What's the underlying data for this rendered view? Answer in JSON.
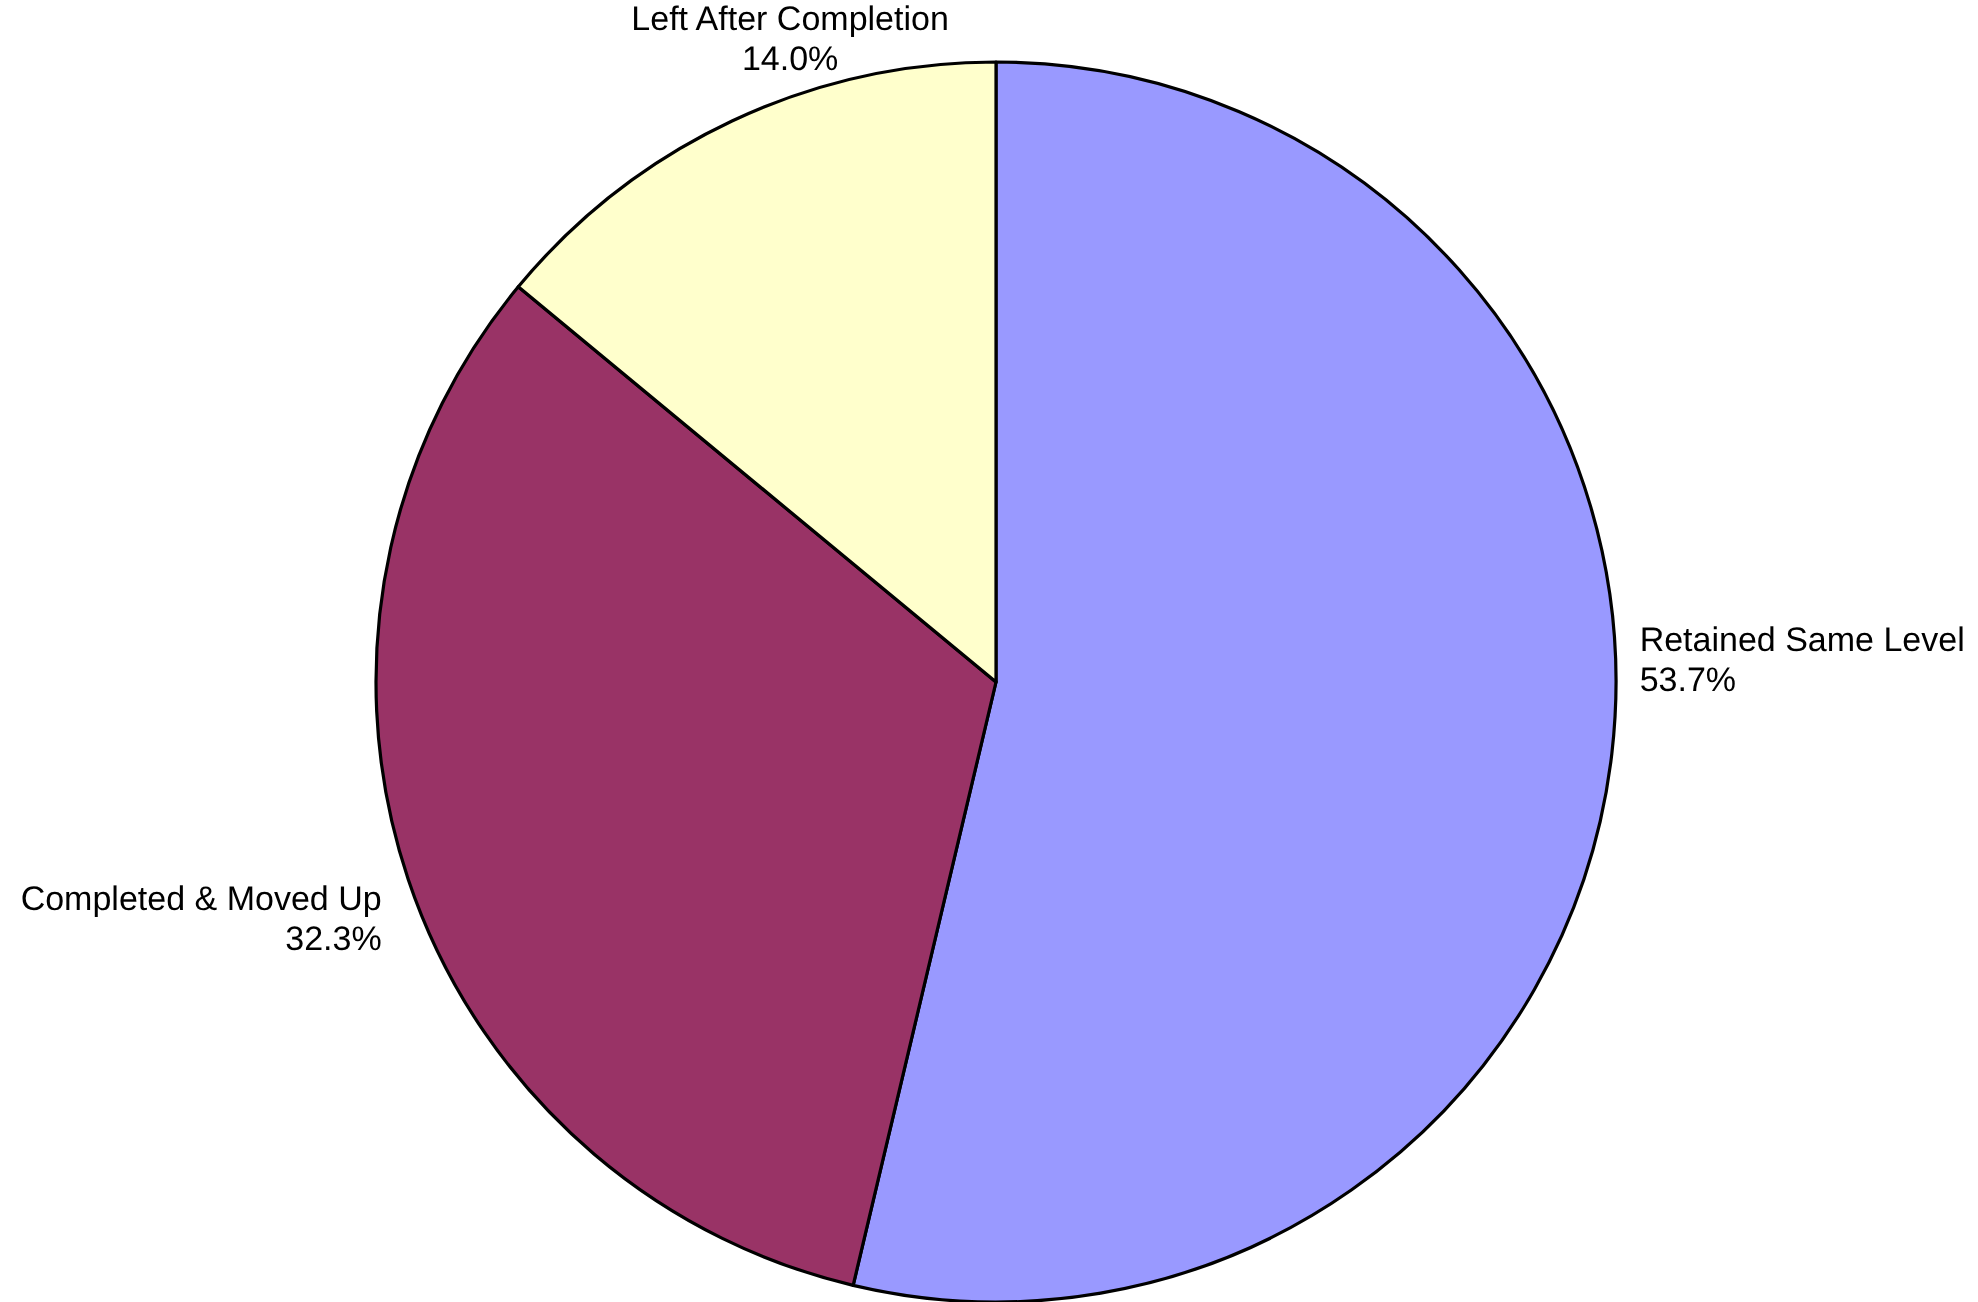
{
  "chart_data": {
    "type": "pie",
    "categories": [
      "Retained Same Level",
      "Completed & Moved Up",
      "Left After Completion"
    ],
    "values": [
      53.7,
      32.3,
      14.0
    ],
    "value_labels": [
      "53.7%",
      "32.3%",
      "14.0%"
    ],
    "colors": [
      "#9999ff",
      "#993366",
      "#ffffcc"
    ]
  }
}
